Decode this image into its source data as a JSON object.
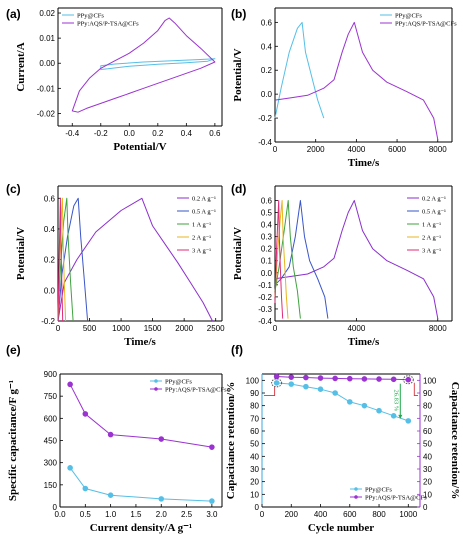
{
  "colors": {
    "PPy@CFs": "#56bfe6",
    "PPy:AQS/P-TSA@CFs": "#9b33d1",
    "0.2 A g⁻¹": "#8c2fcf",
    "0.5 A g⁻¹": "#3a55c9",
    "1 A g⁻¹": "#3fa33f",
    "2 A g⁻¹": "#e8b520",
    "3 A g⁻¹": "#e02a7a",
    "retention_axis": "#3aa9e0",
    "capacitance_axis": "#9b33d1",
    "annotation": "#1ea84a"
  },
  "chart_data": [
    {
      "id": "a",
      "panel_label": "(a)",
      "type": "line",
      "xlabel": "Potential/V",
      "ylabel": "Current/A",
      "xlim": [
        -0.5,
        0.65
      ],
      "ylim": [
        -0.025,
        0.022
      ],
      "xticks": [
        -0.4,
        -0.2,
        0.0,
        0.2,
        0.4,
        0.6
      ],
      "yticks": [
        -0.02,
        -0.01,
        0.0,
        0.01,
        0.02
      ],
      "xticklabels": [
        "-0.4",
        "-0.2",
        "0.0",
        "0.2",
        "0.4",
        "0.6"
      ],
      "yticklabels": [
        "-0.02",
        "-0.01",
        "0.00",
        "0.01",
        "0.02"
      ],
      "legend_position": "top-left",
      "series": [
        {
          "name": "PPy@CFs",
          "closed": true,
          "points": [
            [
              -0.2,
              -0.001
            ],
            [
              -0.1,
              -0.0003
            ],
            [
              0.1,
              0.0005
            ],
            [
              0.3,
              0.001
            ],
            [
              0.5,
              0.0015
            ],
            [
              0.6,
              0.0018
            ],
            [
              0.55,
              0.0008
            ],
            [
              0.4,
              0.0002
            ],
            [
              0.2,
              -0.0004
            ],
            [
              0.0,
              -0.0012
            ],
            [
              -0.15,
              -0.0022
            ],
            [
              -0.2,
              -0.0025
            ]
          ]
        },
        {
          "name": "PPy:AQS/P-TSA@CFs",
          "closed": true,
          "points": [
            [
              -0.4,
              -0.019
            ],
            [
              -0.35,
              -0.011
            ],
            [
              -0.28,
              -0.006
            ],
            [
              -0.2,
              -0.002
            ],
            [
              -0.1,
              0.001
            ],
            [
              0.0,
              0.004
            ],
            [
              0.1,
              0.008
            ],
            [
              0.2,
              0.013
            ],
            [
              0.25,
              0.017
            ],
            [
              0.28,
              0.018
            ],
            [
              0.32,
              0.016
            ],
            [
              0.4,
              0.011
            ],
            [
              0.5,
              0.006
            ],
            [
              0.6,
              0.0005
            ],
            [
              0.5,
              -0.002
            ],
            [
              0.4,
              -0.004
            ],
            [
              0.3,
              -0.006
            ],
            [
              0.2,
              -0.008
            ],
            [
              0.1,
              -0.01
            ],
            [
              0.0,
              -0.012
            ],
            [
              -0.1,
              -0.014
            ],
            [
              -0.2,
              -0.016
            ],
            [
              -0.3,
              -0.018
            ],
            [
              -0.36,
              -0.0195
            ],
            [
              -0.4,
              -0.019
            ]
          ]
        }
      ]
    },
    {
      "id": "b",
      "panel_label": "(b)",
      "type": "line",
      "xlabel": "Time/s",
      "ylabel": "Potential/V",
      "xlim": [
        0,
        8700
      ],
      "ylim": [
        -0.4,
        0.72
      ],
      "xticks": [
        0,
        2000,
        4000,
        6000,
        8000
      ],
      "yticks": [
        -0.4,
        -0.2,
        0.0,
        0.2,
        0.4,
        0.6
      ],
      "xticklabels": [
        "0",
        "2000",
        "4000",
        "6000",
        "8000"
      ],
      "yticklabels": [
        "-0.4",
        "-0.2",
        "0.0",
        "0.2",
        "0.4",
        "0.6"
      ],
      "legend_position": "top-right",
      "series": [
        {
          "name": "PPy@CFs",
          "points": [
            [
              0,
              -0.2
            ],
            [
              300,
              0.05
            ],
            [
              700,
              0.35
            ],
            [
              1100,
              0.55
            ],
            [
              1330,
              0.6
            ],
            [
              1500,
              0.35
            ],
            [
              1800,
              0.15
            ],
            [
              2100,
              -0.05
            ],
            [
              2400,
              -0.2
            ]
          ]
        },
        {
          "name": "PPy:AQS/P-TSA@CFs",
          "points": [
            [
              0,
              -0.05
            ],
            [
              800,
              -0.03
            ],
            [
              1600,
              -0.01
            ],
            [
              2400,
              0.05
            ],
            [
              2900,
              0.12
            ],
            [
              3300,
              0.35
            ],
            [
              3600,
              0.5
            ],
            [
              3900,
              0.6
            ],
            [
              4300,
              0.35
            ],
            [
              4800,
              0.2
            ],
            [
              5500,
              0.1
            ],
            [
              6500,
              0.02
            ],
            [
              7300,
              -0.05
            ],
            [
              7800,
              -0.2
            ],
            [
              8000,
              -0.38
            ]
          ]
        }
      ]
    },
    {
      "id": "c",
      "panel_label": "(c)",
      "type": "line",
      "xlabel": "Time/s",
      "ylabel": "Potential/V",
      "xlim": [
        0,
        2600
      ],
      "ylim": [
        -0.2,
        0.68
      ],
      "xticks": [
        0,
        500,
        1000,
        1500,
        2000,
        2500
      ],
      "yticks": [
        -0.2,
        0.0,
        0.2,
        0.4,
        0.6
      ],
      "xticklabels": [
        "0",
        "500",
        "1000",
        "1500",
        "2000",
        "2500"
      ],
      "yticklabels": [
        "-0.2",
        "0.0",
        "0.2",
        "0.4",
        "0.6"
      ],
      "legend_position": "top-right",
      "series": [
        {
          "name": "0.2 A g⁻¹",
          "points": [
            [
              0,
              -0.2
            ],
            [
              100,
              0.05
            ],
            [
              300,
              0.2
            ],
            [
              600,
              0.38
            ],
            [
              1000,
              0.52
            ],
            [
              1330,
              0.6
            ],
            [
              1500,
              0.42
            ],
            [
              1700,
              0.3
            ],
            [
              1900,
              0.18
            ],
            [
              2100,
              0.05
            ],
            [
              2300,
              -0.08
            ],
            [
              2450,
              -0.2
            ]
          ]
        },
        {
          "name": "0.5 A g⁻¹",
          "points": [
            [
              0,
              -0.2
            ],
            [
              60,
              0.1
            ],
            [
              150,
              0.35
            ],
            [
              250,
              0.55
            ],
            [
              320,
              0.6
            ],
            [
              360,
              0.35
            ],
            [
              410,
              0.1
            ],
            [
              470,
              -0.2
            ]
          ]
        },
        {
          "name": "1 A g⁻¹",
          "points": [
            [
              0,
              -0.2
            ],
            [
              40,
              0.15
            ],
            [
              90,
              0.45
            ],
            [
              140,
              0.6
            ],
            [
              160,
              0.35
            ],
            [
              200,
              0.05
            ],
            [
              240,
              -0.2
            ]
          ]
        },
        {
          "name": "2 A g⁻¹",
          "points": [
            [
              0,
              -0.2
            ],
            [
              25,
              0.2
            ],
            [
              55,
              0.5
            ],
            [
              70,
              0.6
            ],
            [
              80,
              0.35
            ],
            [
              100,
              0.05
            ],
            [
              120,
              -0.2
            ]
          ]
        },
        {
          "name": "3 A g⁻¹",
          "points": [
            [
              0,
              -0.2
            ],
            [
              20,
              0.25
            ],
            [
              38,
              0.6
            ],
            [
              45,
              0.35
            ],
            [
              60,
              0.05
            ],
            [
              75,
              -0.2
            ]
          ]
        }
      ]
    },
    {
      "id": "d",
      "panel_label": "(d)",
      "type": "line",
      "xlabel": "Time/s",
      "ylabel": "Potential/V",
      "xlim": [
        0,
        8700
      ],
      "ylim": [
        -0.4,
        0.72
      ],
      "xticks": [
        0,
        4000,
        8000
      ],
      "yticks": [
        -0.4,
        -0.3,
        -0.2,
        -0.1,
        0.0,
        0.1,
        0.2,
        0.3,
        0.4,
        0.5,
        0.6
      ],
      "xticklabels": [
        "0",
        "4000",
        "8000"
      ],
      "yticklabels": [
        "-0.4",
        "-0.3",
        "-0.2",
        "-0.1",
        "0.0",
        "0.1",
        "0.2",
        "0.3",
        "0.4",
        "0.5",
        "0.6"
      ],
      "legend_position": "top-right",
      "series": [
        {
          "name": "0.2 A g⁻¹",
          "points": [
            [
              0,
              -0.05
            ],
            [
              800,
              -0.03
            ],
            [
              1600,
              -0.01
            ],
            [
              2400,
              0.05
            ],
            [
              2900,
              0.12
            ],
            [
              3300,
              0.35
            ],
            [
              3600,
              0.5
            ],
            [
              3900,
              0.6
            ],
            [
              4300,
              0.35
            ],
            [
              4800,
              0.2
            ],
            [
              5500,
              0.1
            ],
            [
              6500,
              0.02
            ],
            [
              7300,
              -0.05
            ],
            [
              7800,
              -0.2
            ],
            [
              8000,
              -0.38
            ]
          ]
        },
        {
          "name": "0.5 A g⁻¹",
          "points": [
            [
              0,
              -0.1
            ],
            [
              300,
              -0.05
            ],
            [
              700,
              0.05
            ],
            [
              1000,
              0.3
            ],
            [
              1250,
              0.6
            ],
            [
              1450,
              0.3
            ],
            [
              1700,
              0.1
            ],
            [
              2100,
              -0.05
            ],
            [
              2450,
              -0.2
            ],
            [
              2600,
              -0.38
            ]
          ]
        },
        {
          "name": "1 A g⁻¹",
          "points": [
            [
              0,
              -0.15
            ],
            [
              200,
              0.05
            ],
            [
              450,
              0.35
            ],
            [
              650,
              0.6
            ],
            [
              750,
              0.3
            ],
            [
              900,
              0.05
            ],
            [
              1100,
              -0.15
            ],
            [
              1250,
              -0.38
            ]
          ]
        },
        {
          "name": "2 A g⁻¹",
          "points": [
            [
              0,
              -0.2
            ],
            [
              120,
              0.15
            ],
            [
              260,
              0.45
            ],
            [
              350,
              0.6
            ],
            [
              400,
              0.3
            ],
            [
              480,
              0.05
            ],
            [
              560,
              -0.2
            ],
            [
              640,
              -0.38
            ]
          ]
        },
        {
          "name": "3 A g⁻¹",
          "points": [
            [
              0,
              -0.25
            ],
            [
              80,
              0.2
            ],
            [
              180,
              0.6
            ],
            [
              210,
              0.3
            ],
            [
              260,
              0.05
            ],
            [
              320,
              -0.2
            ],
            [
              380,
              -0.38
            ]
          ]
        }
      ]
    },
    {
      "id": "e",
      "panel_label": "(e)",
      "type": "line",
      "xlabel": "Current density/A g⁻¹",
      "ylabel": "Specific capacitance/F g⁻¹",
      "xlim": [
        0,
        3.2
      ],
      "ylim": [
        0,
        900
      ],
      "xticks": [
        0.0,
        0.5,
        1.0,
        1.5,
        2.0,
        2.5,
        3.0
      ],
      "yticks": [
        0,
        150,
        300,
        450,
        600,
        750,
        900
      ],
      "xticklabels": [
        "0.0",
        "0.5",
        "1.0",
        "1.5",
        "2.0",
        "2.5",
        "3.0"
      ],
      "yticklabels": [
        "0",
        "150",
        "300",
        "450",
        "600",
        "750",
        "900"
      ],
      "legend_position": "top-right",
      "series": [
        {
          "name": "PPy@CFs",
          "x": [
            0.2,
            0.5,
            1.0,
            2.0,
            3.0
          ],
          "y": [
            265,
            125,
            80,
            55,
            40
          ]
        },
        {
          "name": "PPy:AQS/P-TSA@CFs",
          "x": [
            0.2,
            0.5,
            1.0,
            2.0,
            3.0
          ],
          "y": [
            830,
            630,
            490,
            460,
            405
          ]
        }
      ]
    },
    {
      "id": "f",
      "panel_label": "(f)",
      "type": "line",
      "xlabel": "Cycle number",
      "ylabel": "Capacitance retention/%",
      "ylabel_right": "Capacitance retention/%",
      "xlim": [
        0,
        1080
      ],
      "ylim": [
        0,
        105
      ],
      "xticks": [
        0,
        200,
        400,
        600,
        800,
        1000
      ],
      "yticks": [
        0,
        10,
        20,
        30,
        40,
        50,
        60,
        70,
        80,
        90,
        100
      ],
      "xticklabels": [
        "0",
        "200",
        "400",
        "600",
        "800",
        "1000"
      ],
      "yticklabels": [
        "0",
        "10",
        "20",
        "30",
        "40",
        "50",
        "60",
        "70",
        "80",
        "90",
        "100"
      ],
      "legend_position": "bottom-right",
      "annotation": "26.83 %",
      "series": [
        {
          "name": "PPy@CFs",
          "x": [
            100,
            200,
            300,
            400,
            500,
            600,
            700,
            800,
            900,
            1000
          ],
          "y": [
            98,
            97,
            95,
            93,
            90,
            83,
            80,
            76,
            72,
            68
          ]
        },
        {
          "name": "PPy:AQS/P-TSA@CFs",
          "x": [
            100,
            200,
            300,
            400,
            500,
            600,
            700,
            800,
            900,
            1000
          ],
          "y": [
            103,
            102.5,
            102.2,
            101.8,
            101.5,
            101.3,
            101.1,
            101,
            100.8,
            100.5
          ]
        }
      ]
    }
  ]
}
